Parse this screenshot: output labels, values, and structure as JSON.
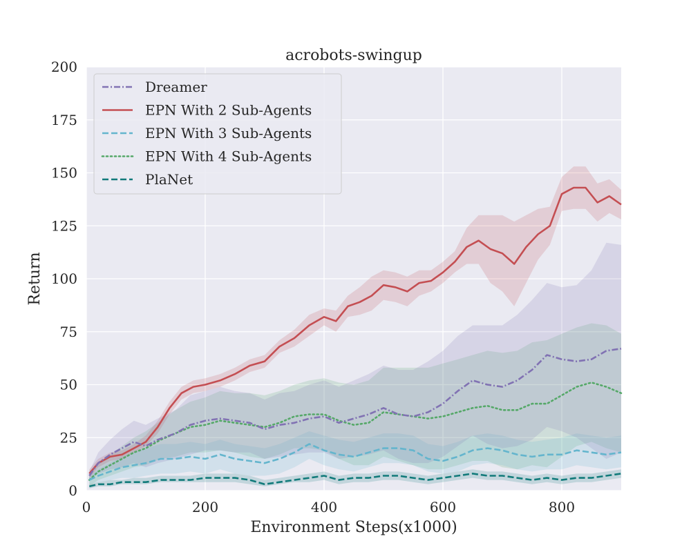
{
  "chart_data": {
    "type": "line",
    "title": "acrobots-swingup",
    "xlabel": "Environment Steps(x1000)",
    "ylabel": "Return",
    "xlim": [
      0,
      900
    ],
    "ylim": [
      0,
      200
    ],
    "xticks": [
      0,
      200,
      400,
      600,
      800
    ],
    "yticks": [
      0,
      25,
      50,
      75,
      100,
      125,
      150,
      175,
      200
    ],
    "grid": true,
    "legend_position": "upper-left",
    "series": [
      {
        "name": "Dreamer",
        "color": "#8172b3",
        "dash": "dashdot",
        "x": [
          5,
          20,
          40,
          60,
          80,
          100,
          120,
          150,
          175,
          200,
          225,
          250,
          275,
          300,
          325,
          350,
          375,
          400,
          425,
          450,
          475,
          500,
          525,
          550,
          575,
          600,
          625,
          650,
          675,
          700,
          725,
          750,
          775,
          800,
          825,
          850,
          875,
          900
        ],
        "y": [
          7,
          13,
          17,
          20,
          23,
          21,
          24,
          27,
          31,
          33,
          34,
          33,
          32,
          29,
          31,
          32,
          34,
          35,
          32,
          34,
          36,
          39,
          36,
          35,
          37,
          41,
          47,
          52,
          50,
          49,
          52,
          57,
          64,
          62,
          61,
          62,
          66,
          67
        ],
        "band_upper": [
          9,
          18,
          24,
          29,
          33,
          31,
          34,
          38,
          45,
          47,
          49,
          47,
          46,
          43,
          46,
          47,
          50,
          52,
          49,
          52,
          55,
          59,
          57,
          57,
          61,
          66,
          73,
          78,
          78,
          78,
          83,
          90,
          98,
          96,
          97,
          104,
          117,
          116
        ],
        "band_lower": [
          5,
          8,
          10,
          11,
          13,
          11,
          13,
          15,
          17,
          19,
          19,
          18,
          18,
          15,
          16,
          17,
          18,
          18,
          15,
          16,
          17,
          19,
          15,
          13,
          13,
          16,
          21,
          26,
          22,
          20,
          21,
          24,
          30,
          28,
          25,
          20,
          15,
          18
        ]
      },
      {
        "name": "EPN With 2 Sub-Agents",
        "color": "#c44e52",
        "dash": "solid",
        "x": [
          5,
          20,
          40,
          60,
          80,
          100,
          120,
          140,
          160,
          180,
          200,
          225,
          250,
          275,
          300,
          325,
          350,
          375,
          400,
          420,
          440,
          460,
          480,
          500,
          520,
          540,
          560,
          580,
          600,
          620,
          640,
          660,
          680,
          700,
          720,
          740,
          760,
          780,
          800,
          820,
          840,
          860,
          880,
          900
        ],
        "y": [
          8,
          13,
          16,
          17,
          20,
          23,
          30,
          39,
          46,
          49,
          50,
          52,
          55,
          59,
          61,
          68,
          72,
          78,
          82,
          80,
          87,
          89,
          92,
          97,
          96,
          94,
          98,
          99,
          103,
          108,
          115,
          118,
          114,
          112,
          107,
          115,
          121,
          125,
          140,
          143,
          143,
          136,
          139,
          135
        ],
        "band_upper": [
          10,
          15,
          18,
          19,
          22,
          26,
          33,
          42,
          49,
          52,
          53,
          55,
          58,
          62,
          64,
          71,
          76,
          83,
          86,
          85,
          92,
          96,
          101,
          104,
          103,
          101,
          104,
          104,
          108,
          113,
          124,
          130,
          130,
          130,
          127,
          130,
          133,
          134,
          148,
          153,
          153,
          145,
          147,
          142
        ],
        "band_lower": [
          6,
          11,
          14,
          15,
          18,
          21,
          27,
          36,
          43,
          46,
          47,
          49,
          52,
          56,
          58,
          65,
          68,
          73,
          78,
          75,
          82,
          83,
          85,
          90,
          89,
          87,
          92,
          94,
          98,
          103,
          107,
          107,
          98,
          94,
          87,
          98,
          109,
          116,
          132,
          133,
          133,
          127,
          131,
          128
        ]
      },
      {
        "name": "EPN With 3 Sub-Agents",
        "color": "#64b5cd",
        "dash": "dashed",
        "x": [
          5,
          20,
          40,
          60,
          80,
          100,
          125,
          150,
          175,
          200,
          225,
          250,
          275,
          300,
          325,
          350,
          375,
          400,
          425,
          450,
          475,
          500,
          525,
          550,
          575,
          600,
          625,
          650,
          675,
          700,
          725,
          750,
          775,
          800,
          825,
          850,
          875,
          900
        ],
        "y": [
          5,
          7,
          9,
          11,
          12,
          13,
          15,
          15,
          16,
          15,
          17,
          15,
          14,
          13,
          15,
          18,
          22,
          19,
          17,
          16,
          18,
          20,
          20,
          19,
          15,
          14,
          16,
          19,
          20,
          19,
          17,
          16,
          17,
          17,
          19,
          18,
          17,
          18
        ],
        "band_upper": [
          7,
          10,
          13,
          16,
          18,
          20,
          22,
          22,
          23,
          22,
          24,
          22,
          21,
          20,
          22,
          25,
          28,
          26,
          24,
          23,
          25,
          27,
          27,
          26,
          22,
          21,
          23,
          26,
          27,
          26,
          24,
          23,
          24,
          25,
          27,
          26,
          25,
          26
        ],
        "band_lower": [
          3,
          4,
          5,
          6,
          6,
          7,
          8,
          8,
          9,
          8,
          10,
          8,
          7,
          7,
          8,
          11,
          15,
          12,
          10,
          9,
          11,
          13,
          13,
          12,
          9,
          8,
          9,
          12,
          13,
          12,
          10,
          9,
          10,
          10,
          12,
          11,
          10,
          11
        ]
      },
      {
        "name": "EPN With 4 Sub-Agents",
        "color": "#55a868",
        "dash": "dotted",
        "x": [
          5,
          20,
          40,
          60,
          80,
          100,
          125,
          150,
          175,
          200,
          225,
          250,
          275,
          300,
          325,
          350,
          375,
          400,
          425,
          450,
          475,
          500,
          525,
          550,
          575,
          600,
          625,
          650,
          675,
          700,
          725,
          750,
          775,
          800,
          825,
          850,
          875,
          900
        ],
        "y": [
          5,
          9,
          12,
          15,
          18,
          20,
          24,
          27,
          30,
          31,
          33,
          32,
          31,
          30,
          32,
          35,
          36,
          36,
          33,
          31,
          32,
          37,
          36,
          35,
          34,
          35,
          37,
          39,
          40,
          38,
          38,
          41,
          41,
          45,
          49,
          51,
          49,
          46
        ],
        "band_upper": [
          8,
          13,
          17,
          21,
          25,
          28,
          33,
          38,
          42,
          44,
          47,
          46,
          46,
          45,
          47,
          50,
          52,
          53,
          51,
          50,
          52,
          58,
          58,
          58,
          58,
          60,
          62,
          64,
          66,
          65,
          66,
          70,
          71,
          74,
          77,
          79,
          78,
          74
        ],
        "band_lower": [
          2,
          5,
          7,
          9,
          11,
          12,
          15,
          16,
          18,
          18,
          19,
          18,
          16,
          15,
          17,
          20,
          20,
          19,
          15,
          12,
          12,
          16,
          14,
          12,
          10,
          10,
          12,
          14,
          14,
          11,
          10,
          12,
          11,
          16,
          21,
          23,
          20,
          18
        ]
      },
      {
        "name": "PlaNet",
        "color": "#117a7a",
        "dash": "dashed",
        "x": [
          5,
          20,
          40,
          60,
          80,
          100,
          125,
          150,
          175,
          200,
          225,
          250,
          275,
          300,
          325,
          350,
          375,
          400,
          425,
          450,
          475,
          500,
          525,
          550,
          575,
          600,
          625,
          650,
          675,
          700,
          725,
          750,
          775,
          800,
          825,
          850,
          875,
          900
        ],
        "y": [
          2,
          3,
          3,
          4,
          4,
          4,
          5,
          5,
          5,
          6,
          6,
          6,
          5,
          3,
          4,
          5,
          6,
          7,
          5,
          6,
          6,
          7,
          7,
          6,
          5,
          6,
          7,
          8,
          7,
          7,
          6,
          5,
          6,
          5,
          6,
          6,
          7,
          8
        ],
        "band_upper": [
          3,
          4,
          5,
          5,
          6,
          6,
          7,
          7,
          7,
          8,
          8,
          8,
          7,
          5,
          6,
          7,
          8,
          9,
          7,
          8,
          8,
          9,
          9,
          8,
          7,
          8,
          9,
          10,
          9,
          9,
          8,
          7,
          8,
          7,
          8,
          8,
          9,
          10
        ],
        "band_lower": [
          1,
          2,
          2,
          3,
          3,
          3,
          4,
          4,
          4,
          4,
          4,
          4,
          3,
          2,
          3,
          4,
          4,
          5,
          3,
          4,
          4,
          5,
          5,
          4,
          3,
          4,
          5,
          6,
          5,
          5,
          4,
          3,
          4,
          3,
          4,
          4,
          5,
          6
        ]
      }
    ]
  }
}
